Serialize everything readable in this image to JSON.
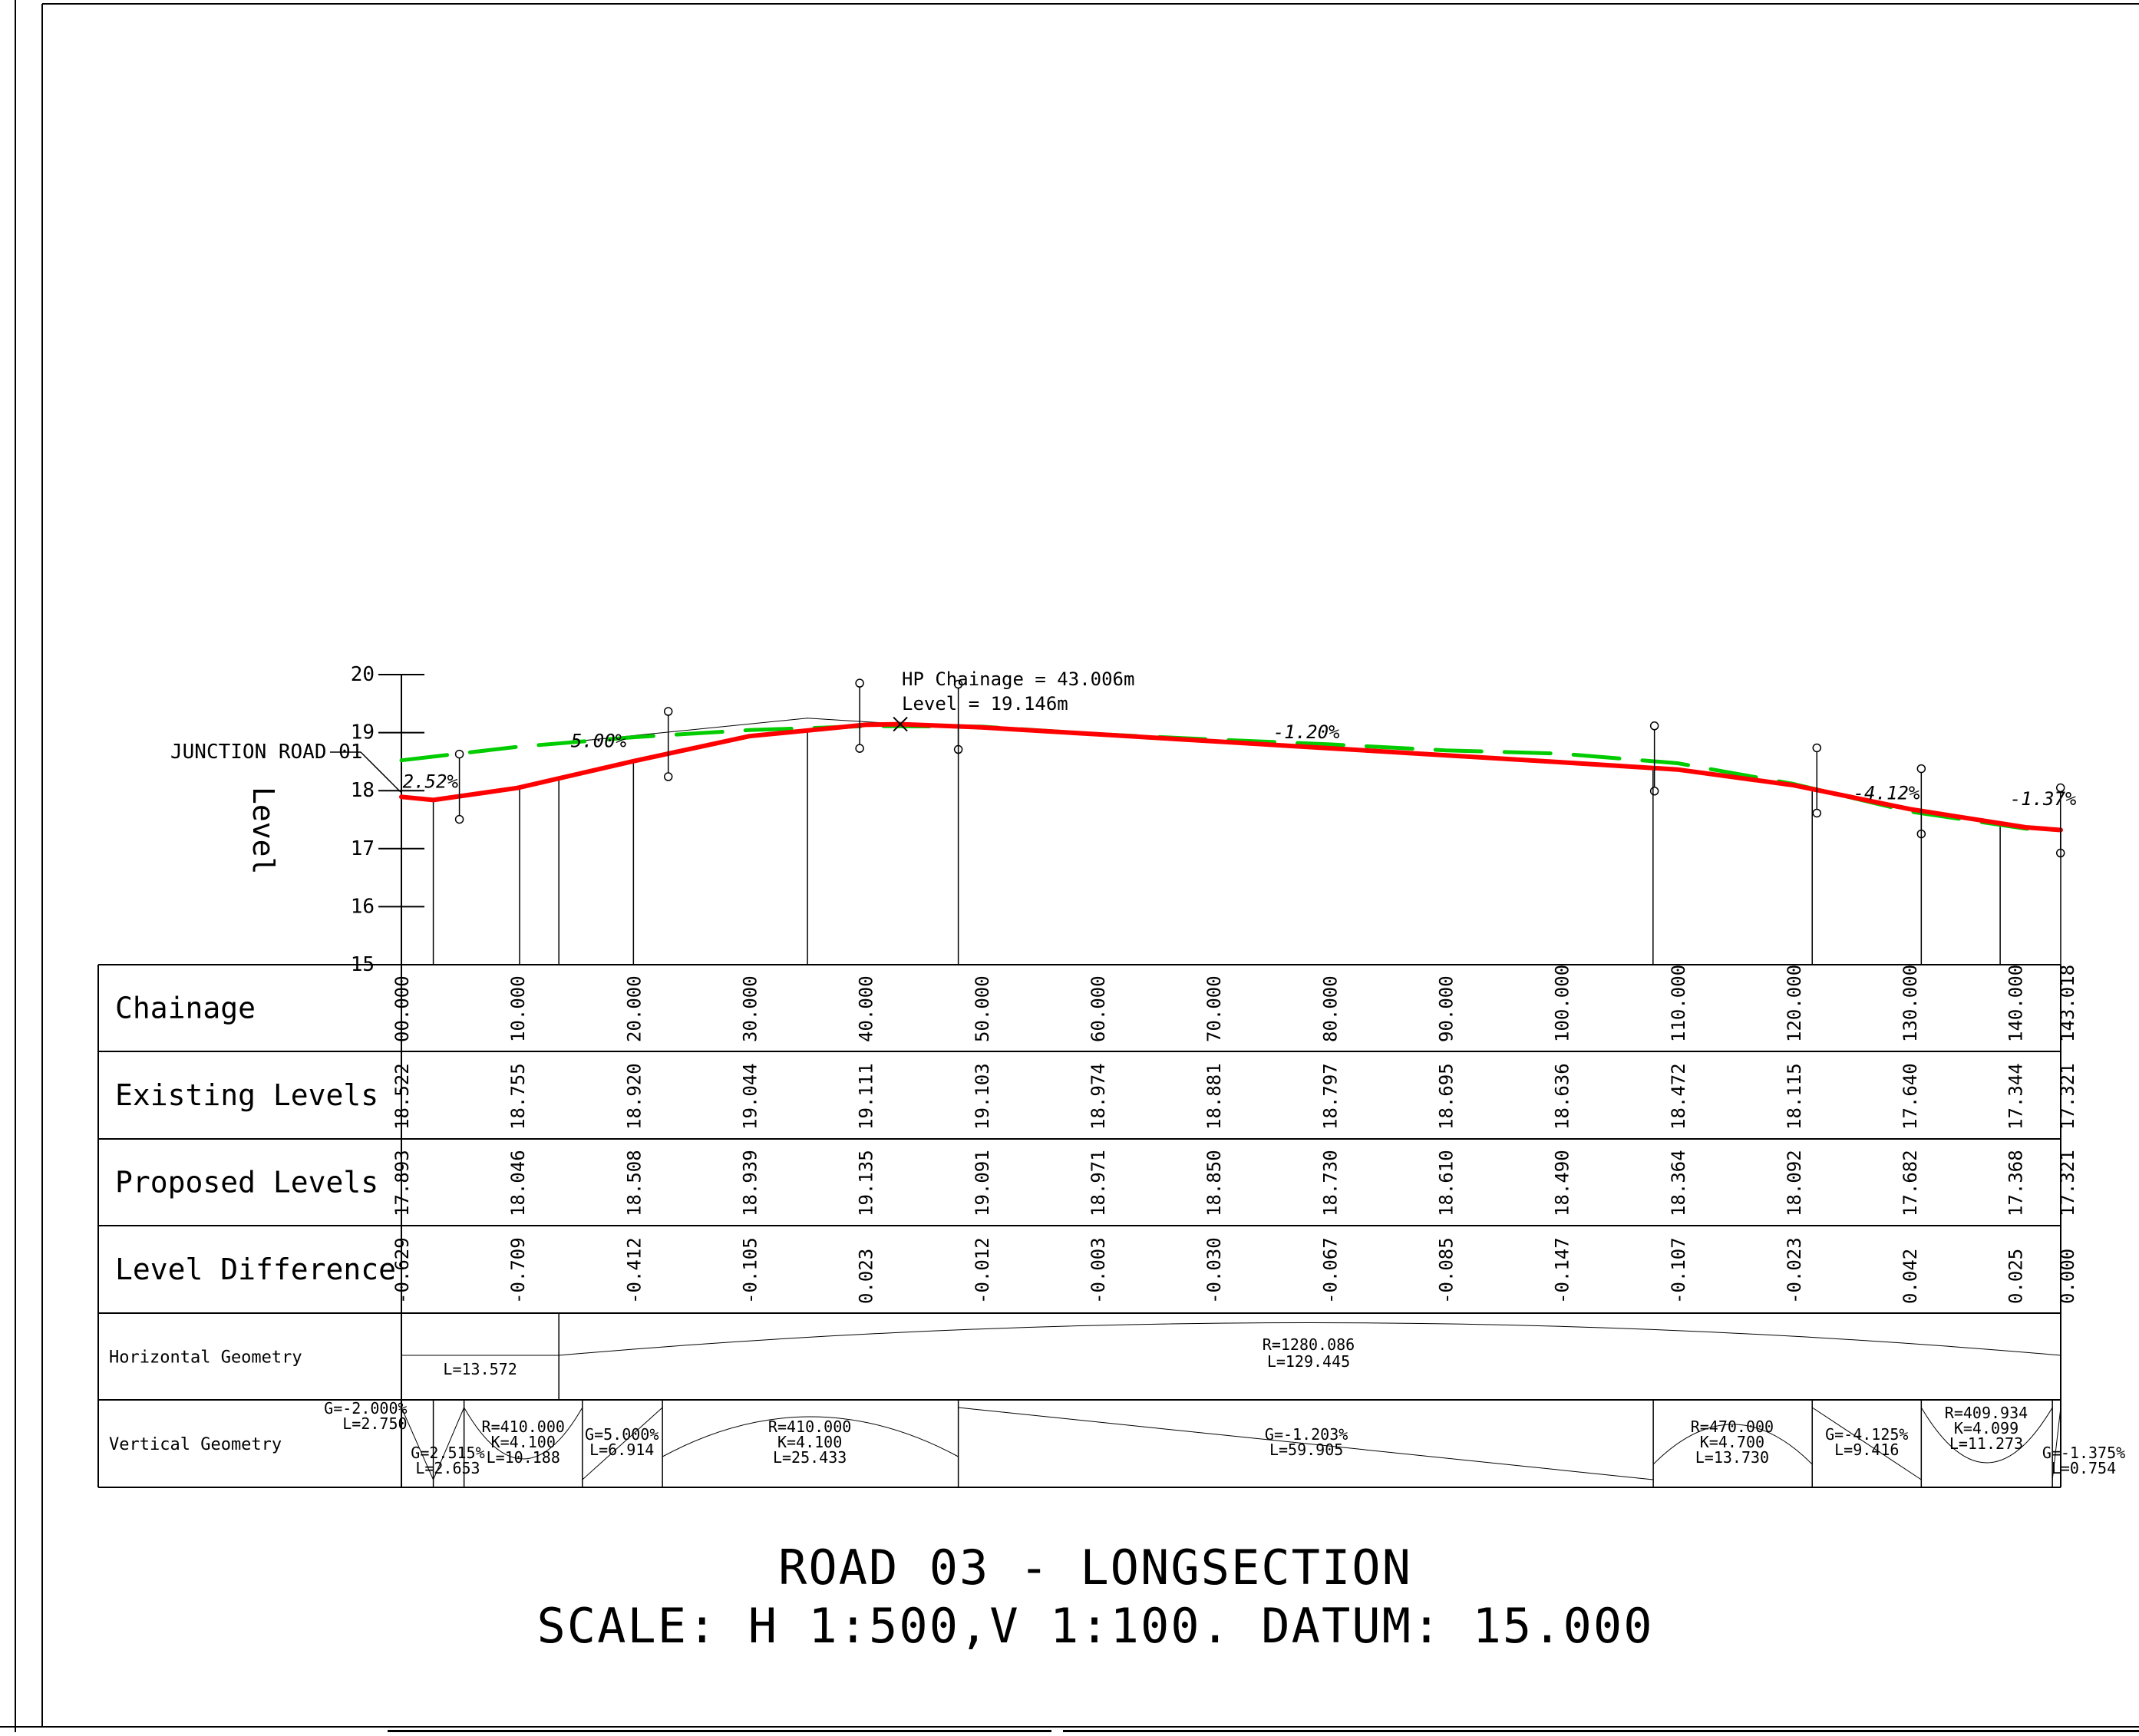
{
  "window": {
    "title": ""
  },
  "chart_data": {
    "type": "line",
    "ylabel": "Level",
    "ylim": [
      15,
      20
    ],
    "xlim": [
      0,
      143.018
    ],
    "yticks": [
      "20",
      "19",
      "18",
      "17",
      "16",
      "15"
    ],
    "annotations": {
      "junction": "JUNCTION ROAD 01",
      "hp_chainage": "HP Chainage = 43.006m",
      "hp_level": "Level = 19.146m",
      "grades": [
        {
          "text": "2.52%",
          "x": 2.5,
          "y": 18.05
        },
        {
          "text": "5.00%",
          "x": 17.0,
          "y": 18.75
        },
        {
          "text": "-1.20%",
          "x": 78.0,
          "y": 18.9
        },
        {
          "text": "-4.12%",
          "x": 128.0,
          "y": 17.85
        },
        {
          "text": "-1.37%",
          "x": 141.5,
          "y": 17.75
        }
      ]
    },
    "series": [
      {
        "color": "#00cc00",
        "style": "dashed",
        "x": [
          0,
          10,
          20,
          30,
          40,
          50,
          60,
          70,
          80,
          90,
          100,
          110,
          120,
          130,
          140,
          143.018
        ],
        "y": [
          18.522,
          18.755,
          18.92,
          19.044,
          19.111,
          19.103,
          18.974,
          18.881,
          18.797,
          18.695,
          18.636,
          18.472,
          18.115,
          17.64,
          17.344,
          17.321
        ]
      },
      {
        "color": "#ff0000",
        "style": "solid",
        "x": [
          0,
          2.75,
          10,
          20,
          30,
          40,
          43.006,
          50,
          60,
          70,
          80,
          90,
          100,
          110,
          120,
          130,
          140,
          143.018
        ],
        "y": [
          17.893,
          17.838,
          18.046,
          18.508,
          18.939,
          19.135,
          19.146,
          19.091,
          18.971,
          18.85,
          18.73,
          18.61,
          18.49,
          18.364,
          18.092,
          17.682,
          17.368,
          17.321
        ]
      }
    ],
    "geometry_markers": [
      2.75,
      10.188,
      13.572,
      20.0,
      35.0,
      48.0,
      107.88,
      121.6,
      131.0,
      137.8,
      143.018
    ]
  },
  "table": {
    "headers": {
      "chainage": "Chainage",
      "existing": "Existing Levels",
      "proposed": "Proposed Levels",
      "difference": "Level Difference",
      "horizontal": "Horizontal Geometry",
      "vertical": "Vertical Geometry"
    },
    "chainage": [
      "00.000",
      "10.000",
      "20.000",
      "30.000",
      "40.000",
      "50.000",
      "60.000",
      "70.000",
      "80.000",
      "90.000",
      "100.000",
      "110.000",
      "120.000",
      "130.000",
      "140.000",
      "143.018"
    ],
    "existing": [
      "18.522",
      "18.755",
      "18.920",
      "19.044",
      "19.111",
      "19.103",
      "18.974",
      "18.881",
      "18.797",
      "18.695",
      "18.636",
      "18.472",
      "18.115",
      "17.640",
      "17.344",
      "17.321"
    ],
    "proposed": [
      "17.893",
      "18.046",
      "18.508",
      "18.939",
      "19.135",
      "19.091",
      "18.971",
      "18.850",
      "18.730",
      "18.610",
      "18.490",
      "18.364",
      "18.092",
      "17.682",
      "17.368",
      "17.321"
    ],
    "difference": [
      "-0.629",
      "-0.709",
      "-0.412",
      "-0.105",
      "0.023",
      "-0.012",
      "-0.003",
      "-0.030",
      "-0.067",
      "-0.085",
      "-0.147",
      "-0.107",
      "-0.023",
      "0.042",
      "0.025",
      "0.000"
    ],
    "horizontal": {
      "straight": "L=13.572",
      "curve_r": "R=1280.086",
      "curve_l": "L=129.445"
    },
    "vertical": {
      "g1": "G=-2.000%",
      "g1l": "L=2.750",
      "g2": "G=2.515%",
      "g2l": "L=2.653",
      "c1r": "R=410.000",
      "c1k": "K=4.100",
      "c1l": "L=10.188",
      "g3": "G=5.000%",
      "g3l": "L=6.914",
      "c2r": "R=410.000",
      "c2k": "K=4.100",
      "c2l": "L=25.433",
      "g4": "G=-1.203%",
      "g4l": "L=59.905",
      "c3r": "R=470.000",
      "c3k": "K=4.700",
      "c3l": "L=13.730",
      "g5": "G=-4.125%",
      "g5l": "L=9.416",
      "c4r": "R=409.934",
      "c4k": "K=4.099",
      "c4l": "L=11.273",
      "g6": "G=-1.375%",
      "g6l": "L=0.754"
    }
  },
  "title": {
    "line1": "ROAD 03 - LONGSECTION",
    "line2": "SCALE: H 1:500,V 1:100. DATUM: 15.000"
  }
}
